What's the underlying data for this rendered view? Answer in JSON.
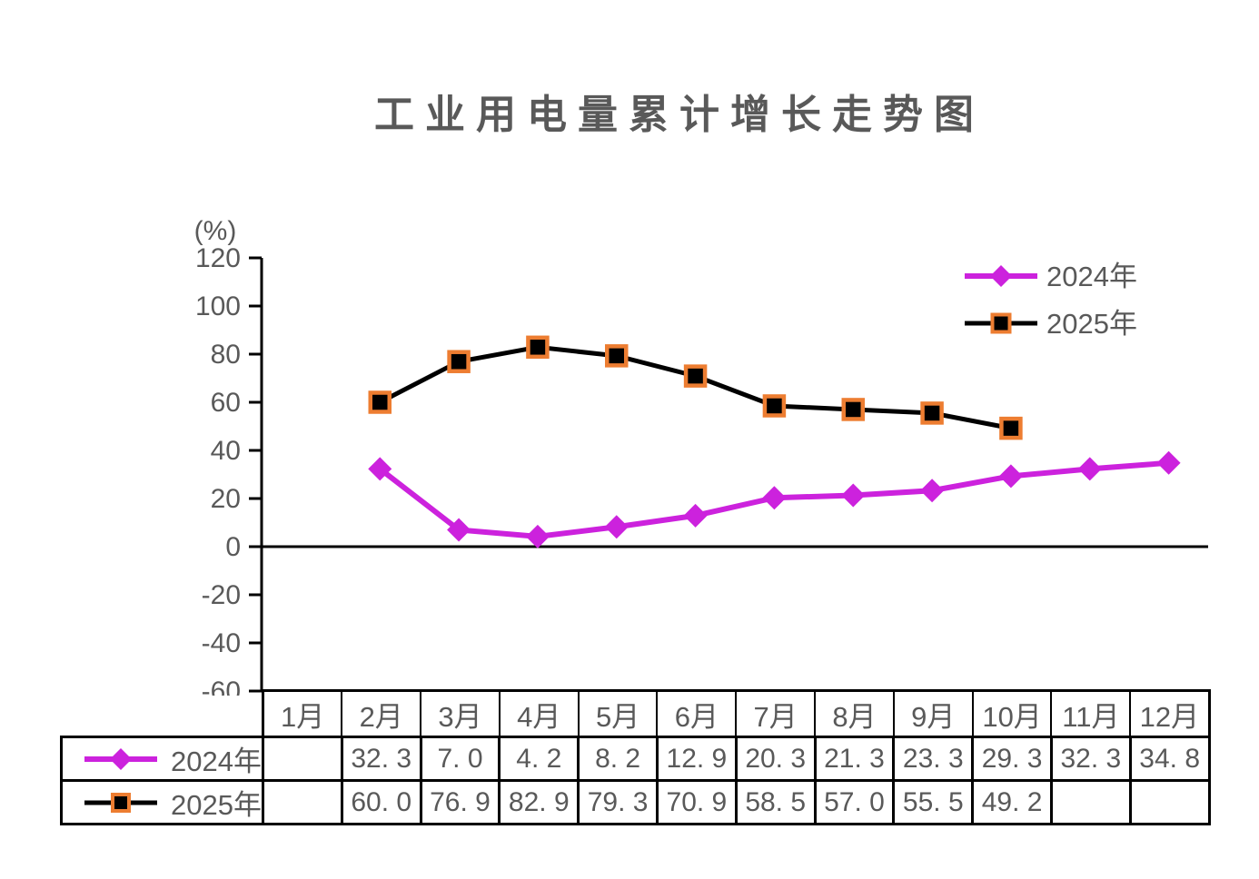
{
  "title": "工业用电量累计增长走势图",
  "colors": {
    "text": "#595959",
    "axis": "#000000",
    "series_2024": "#CC22DD",
    "series_2025": "#000000",
    "marker_border_2025": "#ED7D31",
    "table_border": "#000000",
    "background": "#FFFFFF"
  },
  "chart_data": {
    "type": "line",
    "title": "工业用电量累计增长走势图",
    "ylabel": "(%)",
    "xlabel": "",
    "ylim": [
      -60,
      120
    ],
    "ytick_step": 20,
    "yticks": [
      120,
      100,
      80,
      60,
      40,
      20,
      0,
      -20,
      -40,
      -60
    ],
    "categories": [
      "1月",
      "2月",
      "3月",
      "4月",
      "5月",
      "6月",
      "7月",
      "8月",
      "9月",
      "10月",
      "11月",
      "12月"
    ],
    "series": [
      {
        "name": "2024年",
        "color": "#CC22DD",
        "marker": "diamond",
        "values": [
          null,
          32.3,
          7.0,
          4.2,
          8.2,
          12.9,
          20.3,
          21.3,
          23.3,
          29.3,
          32.3,
          34.8
        ]
      },
      {
        "name": "2025年",
        "color": "#000000",
        "marker": "square",
        "marker_border": "#ED7D31",
        "values": [
          null,
          60.0,
          76.9,
          82.9,
          79.3,
          70.9,
          58.5,
          57.0,
          55.5,
          49.2,
          null,
          null
        ]
      }
    ],
    "legend_position": "top-right",
    "grid": false
  },
  "table": {
    "month_headers": [
      "1月",
      "2月",
      "3月",
      "4月",
      "5月",
      "6月",
      "7月",
      "8月",
      "9月",
      "10月",
      "11月",
      "12月"
    ],
    "rows": [
      {
        "label": "2024年",
        "cells": [
          "",
          "32. 3",
          "7. 0",
          "4. 2",
          "8. 2",
          "12. 9",
          "20. 3",
          "21. 3",
          "23. 3",
          "29. 3",
          "32. 3",
          "34. 8"
        ]
      },
      {
        "label": "2025年",
        "cells": [
          "",
          "60. 0",
          "76. 9",
          "82. 9",
          "79. 3",
          "70. 9",
          "58. 5",
          "57. 0",
          "55. 5",
          "49. 2",
          "",
          ""
        ]
      }
    ]
  }
}
